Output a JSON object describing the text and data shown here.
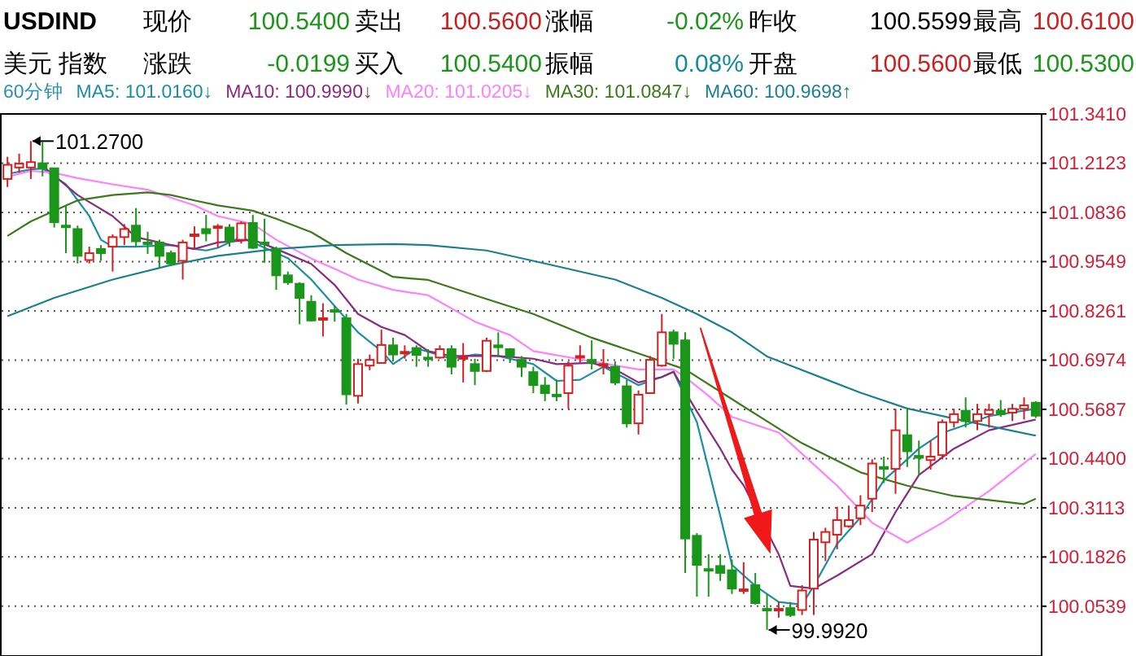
{
  "chart_data": {
    "type": "candlestick",
    "title": "USDIND",
    "subtitle": "美元 指数",
    "categories": [
      null,
      null,
      null,
      null,
      null,
      null,
      null,
      null,
      null,
      null,
      null,
      null,
      null,
      null,
      null,
      null,
      null,
      null,
      null,
      null,
      null,
      null,
      null,
      null,
      null,
      null,
      null,
      null,
      null,
      null,
      null,
      null,
      null,
      null,
      null,
      null,
      null,
      null,
      null,
      null,
      null,
      null,
      null,
      null,
      null,
      null,
      null,
      null,
      null,
      null,
      null,
      null,
      null,
      null,
      null,
      null,
      null,
      null,
      null,
      null,
      null,
      null,
      null,
      null,
      null,
      null,
      null,
      null,
      null,
      null,
      null,
      null,
      null,
      null,
      null,
      null,
      null,
      null,
      null,
      null,
      null,
      null,
      null,
      null,
      null,
      null,
      null,
      null,
      null
    ],
    "ohlc": [
      [
        101.171,
        101.229,
        101.15,
        101.208
      ],
      [
        101.201,
        101.237,
        101.187,
        101.211
      ],
      [
        101.201,
        101.27,
        101.171,
        101.215
      ],
      [
        101.212,
        101.268,
        101.178,
        101.199
      ],
      [
        101.199,
        101.199,
        101.044,
        101.058
      ],
      [
        101.049,
        101.102,
        100.977,
        101.047
      ],
      [
        101.04,
        101.049,
        100.95,
        100.97
      ],
      [
        100.959,
        100.994,
        100.95,
        100.977
      ],
      [
        100.988,
        100.998,
        100.957,
        100.977
      ],
      [
        100.994,
        101.026,
        100.929,
        101.019
      ],
      [
        101.019,
        101.053,
        100.998,
        101.04
      ],
      [
        101.049,
        101.095,
        100.994,
        101.008
      ],
      [
        101.005,
        101.033,
        100.975,
        101.002
      ],
      [
        101.005,
        101.012,
        100.94,
        100.97
      ],
      [
        100.977,
        100.984,
        100.943,
        100.95
      ],
      [
        100.957,
        101.012,
        100.908,
        101.005
      ],
      [
        101.022,
        101.047,
        100.988,
        101.026
      ],
      [
        101.04,
        101.077,
        101.008,
        101.029
      ],
      [
        101.044,
        101.053,
        100.991,
        101.047
      ],
      [
        101.044,
        101.053,
        100.994,
        101.008
      ],
      [
        101.012,
        101.06,
        101.002,
        101.055
      ],
      [
        101.056,
        101.077,
        100.988,
        100.991
      ],
      [
        101.005,
        101.067,
        100.952,
        101.001
      ],
      [
        100.988,
        100.994,
        100.881,
        100.919
      ],
      [
        100.919,
        100.929,
        100.894,
        100.901
      ],
      [
        100.897,
        100.901,
        100.791,
        100.86
      ],
      [
        100.85,
        100.867,
        100.798,
        100.801
      ],
      [
        100.805,
        100.846,
        100.759,
        100.807
      ],
      [
        100.828,
        100.839,
        100.798,
        100.825
      ],
      [
        100.807,
        100.818,
        100.581,
        100.608
      ],
      [
        100.604,
        100.701,
        100.584,
        100.687
      ],
      [
        100.683,
        100.712,
        100.671,
        100.698
      ],
      [
        100.69,
        100.777,
        100.69,
        100.737
      ],
      [
        100.736,
        100.756,
        100.694,
        100.712
      ],
      [
        100.716,
        100.736,
        100.701,
        100.719
      ],
      [
        100.729,
        100.736,
        100.68,
        100.711
      ],
      [
        100.704,
        100.726,
        100.68,
        100.701
      ],
      [
        100.704,
        100.736,
        100.701,
        100.726
      ],
      [
        100.726,
        100.736,
        100.66,
        100.68
      ],
      [
        100.702,
        100.742,
        100.639,
        100.705
      ],
      [
        100.687,
        100.701,
        100.632,
        100.669
      ],
      [
        100.669,
        100.756,
        100.666,
        100.748
      ],
      [
        100.736,
        100.77,
        100.708,
        100.731
      ],
      [
        100.726,
        100.729,
        100.69,
        100.708
      ],
      [
        100.698,
        100.708,
        100.653,
        100.68
      ],
      [
        100.666,
        100.68,
        100.611,
        100.632
      ],
      [
        100.631,
        100.653,
        100.59,
        100.611
      ],
      [
        100.607,
        100.646,
        100.59,
        100.603
      ],
      [
        100.611,
        100.694,
        100.57,
        100.683
      ],
      [
        100.704,
        100.736,
        100.69,
        100.708
      ],
      [
        100.698,
        100.749,
        100.673,
        100.691
      ],
      [
        100.683,
        100.726,
        100.66,
        100.687
      ],
      [
        100.68,
        100.694,
        100.632,
        100.639
      ],
      [
        100.629,
        100.646,
        100.521,
        100.532
      ],
      [
        100.532,
        100.618,
        100.503,
        100.607
      ],
      [
        100.611,
        100.708,
        100.611,
        100.698
      ],
      [
        100.683,
        100.818,
        100.68,
        100.77
      ],
      [
        100.77,
        100.777,
        100.701,
        100.74
      ],
      [
        100.749,
        100.77,
        100.141,
        100.231
      ],
      [
        100.238,
        100.245,
        100.079,
        100.162
      ],
      [
        100.151,
        100.19,
        100.079,
        100.148
      ],
      [
        100.159,
        100.19,
        100.12,
        100.141
      ],
      [
        100.148,
        100.176,
        100.086,
        100.1
      ],
      [
        100.094,
        100.169,
        100.086,
        100.098
      ],
      [
        100.109,
        100.141,
        100.058,
        100.062
      ],
      [
        100.047,
        100.086,
        99.992,
        100.043
      ],
      [
        100.044,
        100.065,
        100.024,
        100.047
      ],
      [
        100.049,
        100.065,
        100.026,
        100.031
      ],
      [
        100.044,
        100.109,
        100.031,
        100.095
      ],
      [
        100.1,
        100.248,
        100.031,
        100.228
      ],
      [
        100.221,
        100.259,
        100.172,
        100.248
      ],
      [
        100.241,
        100.314,
        100.203,
        100.279
      ],
      [
        100.263,
        100.317,
        100.259,
        100.279
      ],
      [
        100.284,
        100.344,
        100.266,
        100.317
      ],
      [
        100.335,
        100.438,
        100.3,
        100.427
      ],
      [
        100.418,
        100.445,
        100.376,
        100.413
      ],
      [
        100.413,
        100.57,
        100.348,
        100.514
      ],
      [
        100.501,
        100.57,
        100.418,
        100.459
      ],
      [
        100.447,
        100.487,
        100.397,
        100.442
      ],
      [
        100.436,
        100.487,
        100.411,
        100.445
      ],
      [
        100.449,
        100.542,
        100.438,
        100.535
      ],
      [
        100.535,
        100.57,
        100.521,
        100.556
      ],
      [
        100.565,
        100.6,
        100.521,
        100.538
      ],
      [
        100.538,
        100.583,
        100.514,
        100.556
      ],
      [
        100.556,
        100.583,
        100.521,
        100.567
      ],
      [
        100.565,
        100.593,
        100.549,
        100.556
      ],
      [
        100.56,
        100.583,
        100.538,
        100.57
      ],
      [
        100.57,
        100.6,
        100.542,
        100.579
      ],
      [
        100.586,
        100.59,
        100.546,
        100.552
      ]
    ],
    "series": [
      {
        "name": "MA5: 101.0160↓",
        "type": "line",
        "color": "#1a8fa3",
        "values": [
          101.184,
          null,
          101.196,
          101.198,
          null,
          101.157,
          null,
          101.074,
          101.012,
          100.994,
          null,
          100.994,
          null,
          null,
          100.998,
          null,
          100.988,
          100.984,
          100.991,
          null,
          101.019,
          101.005,
          null,
          null,
          100.964,
          null,
          100.908,
          null,
          100.839,
          null,
          100.77,
          null,
          100.721,
          100.687,
          null,
          100.728,
          null,
          null,
          100.701,
          null,
          100.712,
          null,
          100.708,
          null,
          null,
          100.687,
          null,
          100.643,
          null,
          100.646,
          null,
          100.68,
          null,
          null,
          100.632,
          null,
          100.653,
          100.667,
          null,
          100.535,
          null,
          100.29,
          100.162,
          null,
          100.107,
          null,
          100.065,
          null,
          100.058,
          100.107,
          null,
          100.217,
          null,
          100.286,
          null,
          100.383,
          null,
          100.438,
          100.466,
          null,
          100.507,
          null,
          100.528,
          null,
          100.551,
          null,
          null,
          null,
          100.57
        ]
      },
      {
        "name": "MA10: 100.9990↓",
        "type": "line",
        "color": "#8b2a7f",
        "values": [
          null,
          null,
          null,
          101.205,
          null,
          null,
          101.129,
          null,
          null,
          101.074,
          null,
          101.019,
          null,
          null,
          100.998,
          null,
          100.988,
          null,
          101.005,
          null,
          null,
          101.012,
          null,
          100.988,
          null,
          null,
          100.949,
          null,
          100.894,
          null,
          100.818,
          null,
          100.784,
          null,
          100.763,
          null,
          100.721,
          null,
          100.708,
          null,
          100.708,
          null,
          100.708,
          null,
          null,
          100.701,
          null,
          100.687,
          null,
          null,
          100.69,
          null,
          100.673,
          null,
          100.639,
          null,
          100.653,
          100.667,
          null,
          100.563,
          null,
          100.466,
          100.411,
          100.37,
          null,
          null,
          100.19,
          100.107,
          null,
          100.1,
          null,
          100.134,
          null,
          null,
          100.19,
          null,
          100.3,
          null,
          100.397,
          null,
          null,
          100.466,
          null,
          null,
          100.514,
          null,
          null,
          null,
          100.542
        ]
      },
      {
        "name": "MA20: 101.0205↓",
        "type": "line",
        "color": "#ff80ff",
        "values": [
          101.177,
          null,
          101.192,
          null,
          101.187,
          null,
          101.173,
          null,
          null,
          101.157,
          null,
          null,
          101.143,
          null,
          101.122,
          null,
          101.102,
          null,
          101.074,
          null,
          null,
          101.053,
          null,
          101.012,
          null,
          null,
          100.963,
          null,
          100.936,
          null,
          100.908,
          null,
          null,
          100.881,
          null,
          null,
          100.867,
          null,
          null,
          null,
          100.798,
          null,
          null,
          100.763,
          null,
          100.721,
          null,
          null,
          null,
          null,
          100.694,
          null,
          null,
          null,
          100.673,
          null,
          null,
          100.673,
          100.653,
          null,
          100.604,
          null,
          100.549,
          null,
          null,
          null,
          100.508,
          null,
          null,
          null,
          null,
          100.369,
          null,
          null,
          100.272,
          null,
          null,
          100.22,
          null,
          null,
          100.272,
          null,
          null,
          null,
          100.355,
          null,
          null,
          null,
          100.452
        ]
      },
      {
        "name": "MA30: 101.0847↓",
        "type": "line",
        "color": "#3a7a1a",
        "values": [
          101.022,
          null,
          101.06,
          null,
          101.088,
          null,
          101.115,
          null,
          null,
          101.129,
          null,
          null,
          101.136,
          null,
          101.129,
          null,
          101.115,
          null,
          101.102,
          null,
          null,
          101.088,
          null,
          101.067,
          null,
          null,
          101.032,
          null,
          null,
          100.977,
          null,
          null,
          null,
          100.915,
          null,
          null,
          100.907,
          null,
          null,
          null,
          100.867,
          null,
          null,
          null,
          null,
          100.818,
          null,
          null,
          null,
          null,
          100.756,
          null,
          null,
          null,
          100.715,
          null,
          null,
          null,
          100.673,
          null,
          null,
          null,
          null,
          100.576,
          null,
          null,
          null,
          null,
          100.48,
          null,
          null,
          null,
          null,
          100.404,
          null,
          null,
          null,
          100.369,
          null,
          null,
          null,
          100.342,
          null,
          null,
          null,
          null,
          null,
          100.321,
          100.335
        ]
      },
      {
        "name": "MA60: 100.9698↑",
        "type": "line",
        "color": "#1a8090",
        "values": [
          100.812,
          null,
          null,
          null,
          100.86,
          null,
          null,
          null,
          null,
          100.908,
          null,
          null,
          null,
          null,
          100.946,
          null,
          null,
          null,
          100.97,
          null,
          null,
          null,
          null,
          100.988,
          null,
          null,
          null,
          null,
          100.998,
          null,
          null,
          null,
          null,
          101.001,
          null,
          null,
          100.998,
          null,
          null,
          null,
          null,
          100.984,
          null,
          null,
          null,
          null,
          100.95,
          null,
          null,
          null,
          null,
          null,
          100.908,
          null,
          null,
          null,
          100.86,
          null,
          null,
          100.818,
          null,
          null,
          100.77,
          null,
          null,
          100.707,
          null,
          null,
          null,
          null,
          null,
          null,
          null,
          100.612,
          null,
          null,
          null,
          100.571,
          null,
          null,
          null,
          null,
          100.538,
          null,
          null,
          null,
          null,
          null,
          100.5
        ]
      }
    ],
    "ylim": [
      99.928,
      101.341
    ],
    "yticks": [
      {
        "value": 101.341,
        "label": "101.3410"
      },
      {
        "value": 101.2123,
        "label": "101.2123"
      },
      {
        "value": 101.0836,
        "label": "101.0836"
      },
      {
        "value": 100.9549,
        "label": "100.9549"
      },
      {
        "value": 100.8261,
        "label": "100.8261"
      },
      {
        "value": 100.6974,
        "label": "100.6974"
      },
      {
        "value": 100.5687,
        "label": "100.5687"
      },
      {
        "value": 100.44,
        "label": "100.4400"
      },
      {
        "value": 100.3113,
        "label": "100.3113"
      },
      {
        "value": 100.1826,
        "label": "100.1826"
      },
      {
        "value": 100.0539,
        "label": "100.0539"
      }
    ],
    "grid": "y",
    "legend": "top left",
    "annotations": [
      "现价",
      "100.5400",
      "卖出",
      "100.5600",
      "涨幅",
      "-0.02%",
      "昨收",
      "100.5599",
      "最高",
      "100.6100",
      "涨跌",
      "-0.0199",
      "买入",
      "100.5400",
      "振幅",
      "0.08%",
      "开盘",
      "100.5600",
      "最低",
      "100.5300",
      "60分钟",
      "101.2700",
      "99.9920"
    ]
  }
}
